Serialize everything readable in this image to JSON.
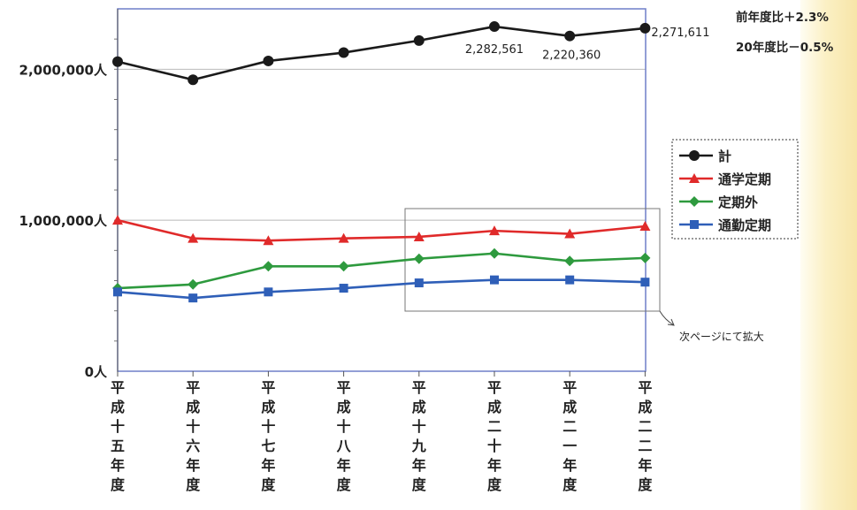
{
  "chart_data": {
    "type": "line",
    "categories": [
      "平成十五年度",
      "平成十六年度",
      "平成十七年度",
      "平成十八年度",
      "平成十九年度",
      "平成二十年度",
      "平成二十一年度",
      "平成二十二年度"
    ],
    "category_labels_vertical": [
      "平成十五年度",
      "平成十六年度",
      "平成十七年度",
      "平成十八年度",
      "平成十九年度",
      "平成二十年度",
      "平成二一年度",
      "平成二二年度"
    ],
    "ylim": [
      0,
      2400000
    ],
    "yticks": [
      {
        "value": 0,
        "label": "0人"
      },
      {
        "value": 1000000,
        "label": "1,000,000人"
      },
      {
        "value": 2000000,
        "label": "2,000,000人"
      }
    ],
    "series": [
      {
        "name": "計",
        "color": "#1a1a1a",
        "marker": "circle",
        "values": [
          2050000,
          1930000,
          2055000,
          2110000,
          2190000,
          2282561,
          2220360,
          2271611
        ]
      },
      {
        "name": "通学定期",
        "color": "#e02a2a",
        "marker": "triangle",
        "values": [
          1000000,
          880000,
          865000,
          880000,
          890000,
          930000,
          910000,
          960000
        ]
      },
      {
        "name": "定期外",
        "color": "#2e9a3e",
        "marker": "diamond",
        "values": [
          550000,
          575000,
          695000,
          695000,
          745000,
          780000,
          730000,
          750000
        ]
      },
      {
        "name": "通勤定期",
        "color": "#2f5fb8",
        "marker": "square",
        "values": [
          525000,
          485000,
          525000,
          550000,
          585000,
          605000,
          605000,
          590000
        ]
      }
    ],
    "data_labels": [
      {
        "series": 0,
        "index": 5,
        "text": "2,282,561"
      },
      {
        "series": 0,
        "index": 6,
        "text": "2,220,360"
      },
      {
        "series": 0,
        "index": 7,
        "text": "2,271,611"
      }
    ],
    "notes": [
      "前年度比＋2.3%",
      "20年度比－0.5%"
    ],
    "zoom_note": "次ページにて拡大",
    "legend_position": "right"
  }
}
